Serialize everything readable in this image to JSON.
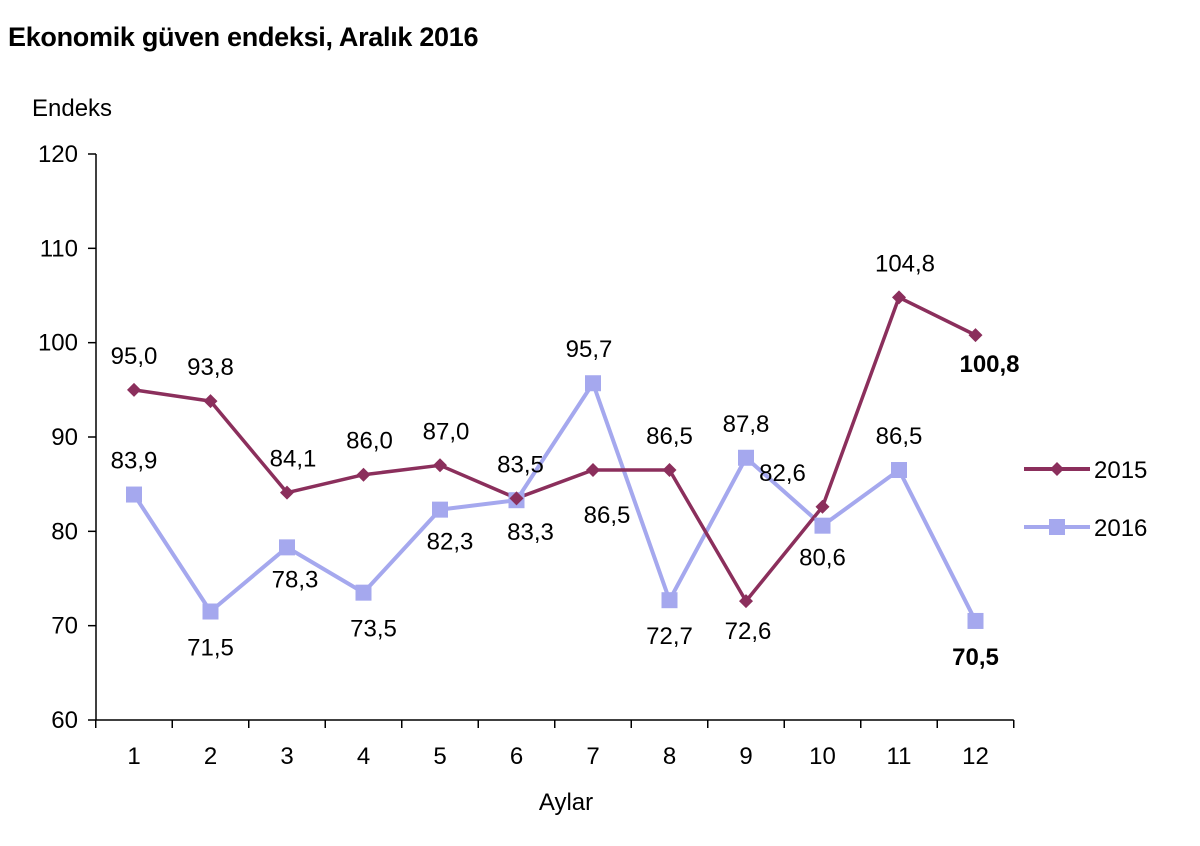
{
  "chart_data": {
    "type": "line",
    "title": "Ekonomik güven endeksi, Aralık 2016",
    "ylabel": "Endeks",
    "xlabel": "Aylar",
    "categories": [
      "1",
      "2",
      "3",
      "4",
      "5",
      "6",
      "7",
      "8",
      "9",
      "10",
      "11",
      "12"
    ],
    "ylim": [
      60,
      120
    ],
    "yticks": [
      60,
      70,
      80,
      90,
      100,
      110,
      120
    ],
    "grid": false,
    "legend": "right",
    "series": [
      {
        "name": "2015",
        "color": "#8b2f5c",
        "marker": "diamond",
        "values": [
          95.0,
          93.8,
          84.1,
          86.0,
          87.0,
          83.5,
          86.5,
          86.5,
          72.6,
          82.6,
          104.8,
          100.8
        ],
        "labels": [
          "95,0",
          "93,8",
          "84,1",
          "86,0",
          "87,0",
          "83,5",
          "86,5",
          "86,5",
          "72,6",
          "82,6",
          "104,8",
          "100,8"
        ]
      },
      {
        "name": "2016",
        "color": "#a5a8ee",
        "marker": "square",
        "values": [
          83.9,
          71.5,
          78.3,
          73.5,
          82.3,
          83.3,
          95.7,
          72.7,
          87.8,
          80.6,
          86.5,
          70.5
        ],
        "labels": [
          "83,9",
          "71,5",
          "78,3",
          "73,5",
          "82,3",
          "83,3",
          "95,7",
          "72,7",
          "87,8",
          "80,6",
          "86,5",
          "70,5"
        ]
      }
    ]
  }
}
